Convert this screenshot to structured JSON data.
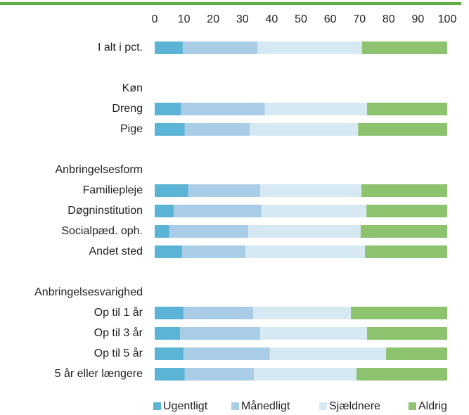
{
  "chart_data": {
    "type": "stacked_barh",
    "categories": [
      "I alt i pct.",
      null,
      "Køn",
      "Dreng",
      "Pige",
      null,
      "Anbringelsesform",
      "Familiepleje",
      "Døgninstitution",
      "Socialpæd. oph.",
      "Andet sted",
      null,
      "Anbringelsesvarighed",
      "Op til 1 år",
      "Op til 3 år",
      "Op til 5 år",
      "5 år eller længere"
    ],
    "series": [
      {
        "name": "Ugentligt",
        "color": "#5bb4d6",
        "values": [
          9.6,
          null,
          null,
          8.9,
          10.3,
          null,
          null,
          11.5,
          6.5,
          5.0,
          9.4,
          null,
          null,
          9.9,
          8.7,
          9.9,
          10.3
        ]
      },
      {
        "name": "Månedligt",
        "color": "#a9cde6",
        "values": [
          25.5,
          null,
          null,
          28.8,
          22.2,
          null,
          null,
          24.6,
          30.0,
          27.0,
          21.6,
          null,
          null,
          23.8,
          27.4,
          29.5,
          23.6
        ]
      },
      {
        "name": "Sjældnere",
        "color": "#d6e9f2",
        "values": [
          35.8,
          null,
          null,
          34.9,
          37.0,
          null,
          null,
          34.6,
          35.9,
          38.4,
          40.9,
          null,
          null,
          33.4,
          36.5,
          39.7,
          35.1
        ]
      },
      {
        "name": "Aldrig",
        "color": "#8dc26e",
        "values": [
          29.1,
          null,
          null,
          27.4,
          30.5,
          null,
          null,
          29.3,
          27.6,
          29.6,
          28.1,
          null,
          null,
          32.9,
          27.4,
          20.9,
          31.0
        ]
      }
    ],
    "xlim": [
      0,
      100
    ],
    "xticks": [
      0,
      10,
      20,
      30,
      40,
      50,
      60,
      70,
      80,
      90,
      100
    ],
    "legend": "bottom"
  }
}
